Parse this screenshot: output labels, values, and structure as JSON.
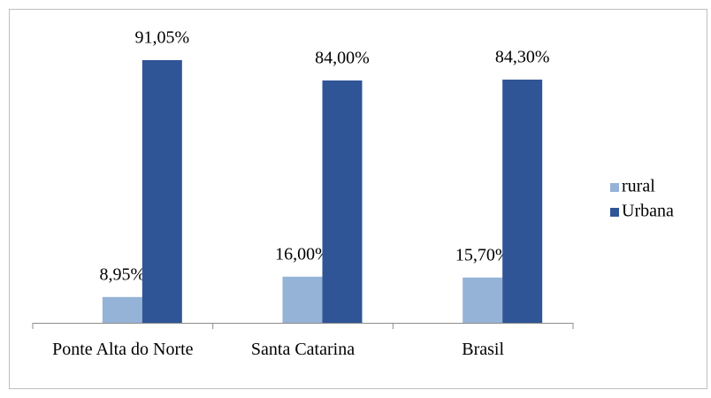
{
  "chart_data": {
    "type": "bar",
    "categories": [
      "Ponte Alta do Norte",
      "Santa Catarina",
      "Brasil"
    ],
    "series": [
      {
        "name": "rural",
        "color": "#95b3d7",
        "values": [
          8.95,
          16.0,
          15.7
        ],
        "value_labels": [
          "8,95%",
          "16,00%",
          "15,70%"
        ]
      },
      {
        "name": "Urbana",
        "color": "#2f5597",
        "values": [
          91.05,
          84.0,
          84.3
        ],
        "value_labels": [
          "91,05%",
          "84,00%",
          "84,30%"
        ]
      }
    ],
    "legend": "right"
  }
}
